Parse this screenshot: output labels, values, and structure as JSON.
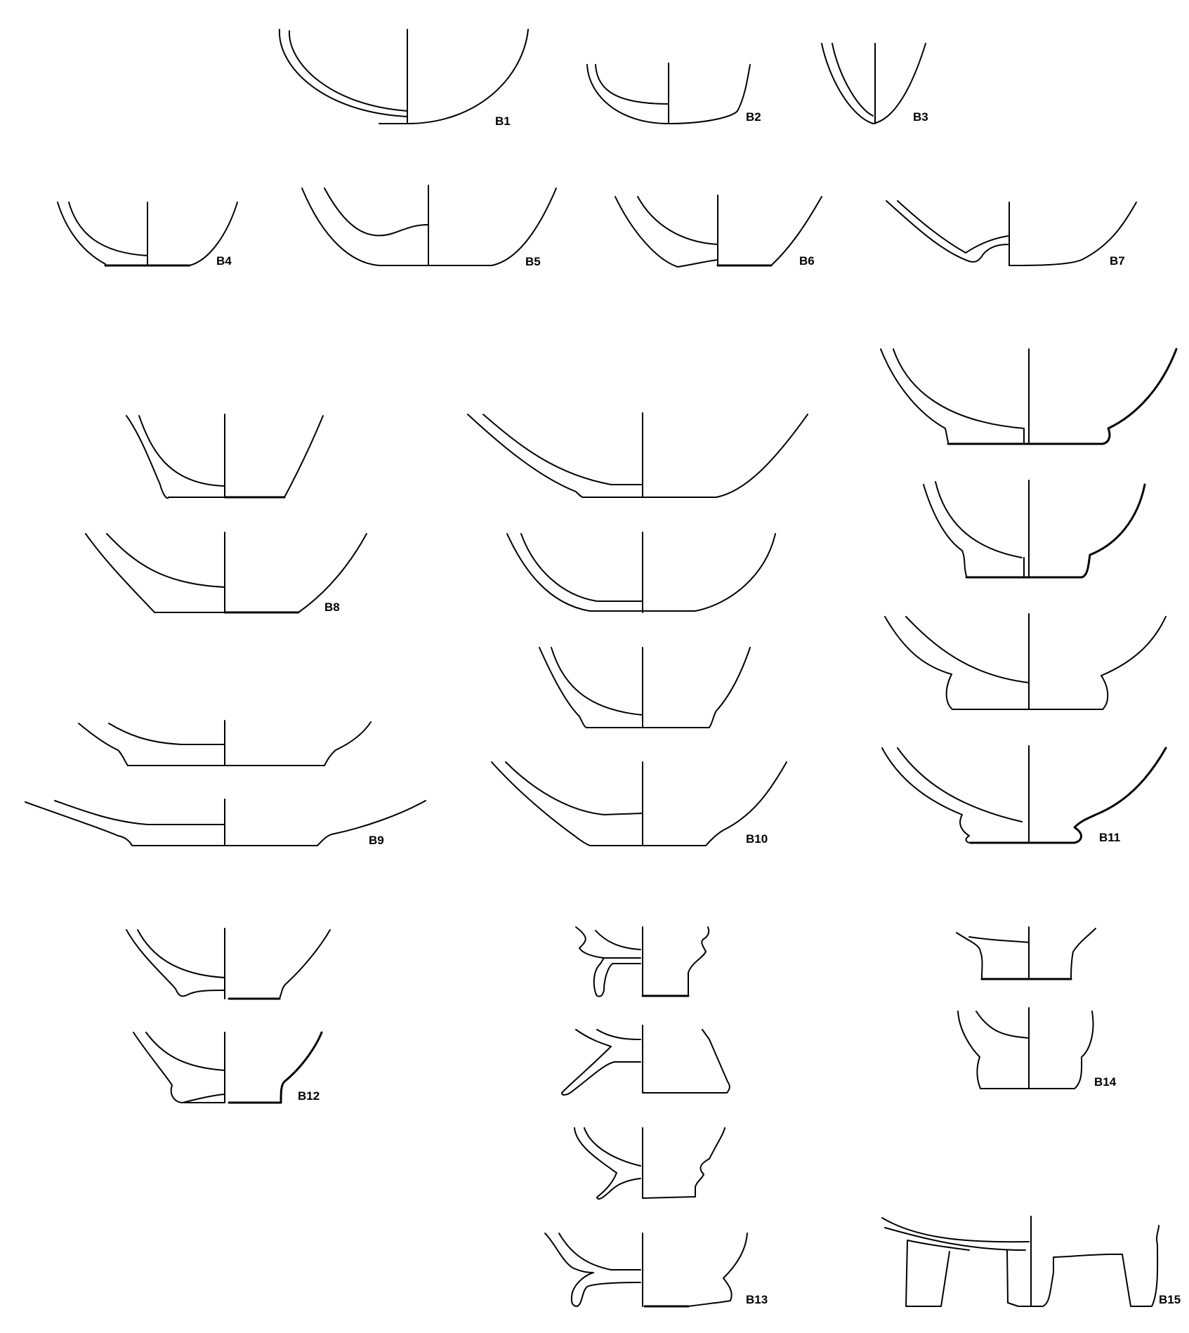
{
  "plate": {
    "background": "#ffffff",
    "ink": "#000000",
    "types": [
      {
        "id": "B1",
        "label": "B1",
        "profiles": 1
      },
      {
        "id": "B2",
        "label": "B2",
        "profiles": 1
      },
      {
        "id": "B3",
        "label": "B3",
        "profiles": 1
      },
      {
        "id": "B4",
        "label": "B4",
        "profiles": 1
      },
      {
        "id": "B5",
        "label": "B5",
        "profiles": 1
      },
      {
        "id": "B6",
        "label": "B6",
        "profiles": 1
      },
      {
        "id": "B7",
        "label": "B7",
        "profiles": 1
      },
      {
        "id": "B8",
        "label": "B8",
        "profiles": 2
      },
      {
        "id": "B9",
        "label": "B9",
        "profiles": 2
      },
      {
        "id": "B10",
        "label": "B10",
        "profiles": 4
      },
      {
        "id": "B11",
        "label": "B11",
        "profiles": 4
      },
      {
        "id": "B12",
        "label": "B12",
        "profiles": 2
      },
      {
        "id": "B13",
        "label": "B13",
        "profiles": 4
      },
      {
        "id": "B14",
        "label": "B14",
        "profiles": 2
      },
      {
        "id": "B15",
        "label": "B15",
        "profiles": 1
      }
    ]
  }
}
